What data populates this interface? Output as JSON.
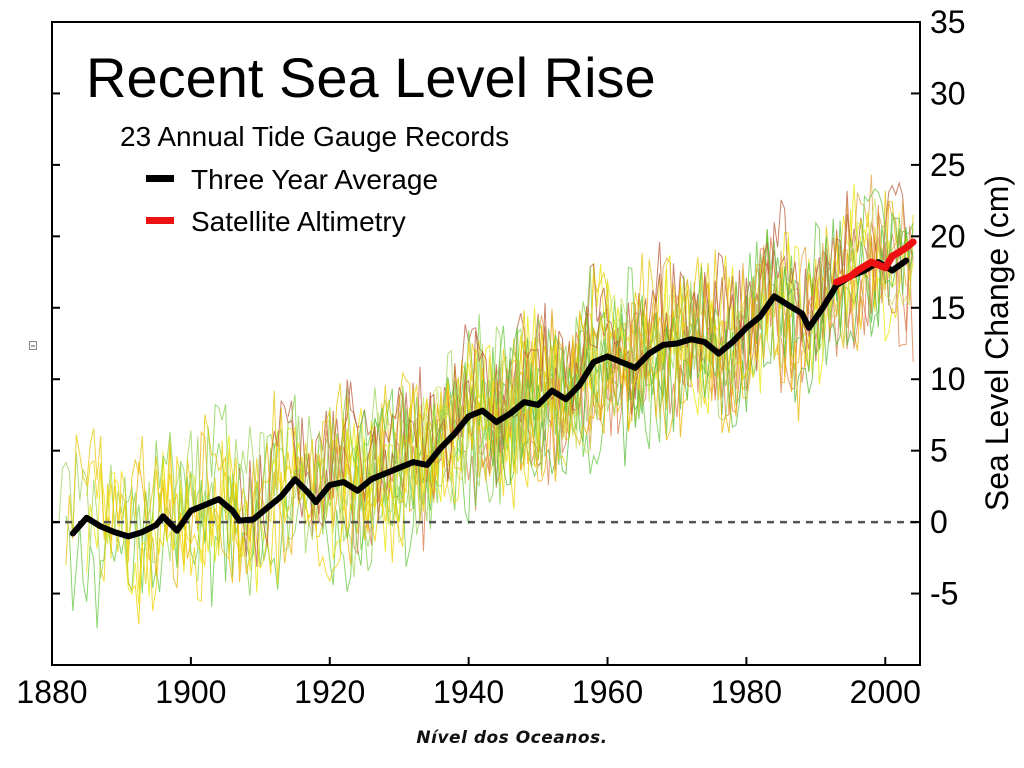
{
  "caption": "Nível dos Oceanos.",
  "chart_data": {
    "type": "line",
    "title": "Recent Sea Level Rise",
    "subtitle": "23 Annual Tide Gauge Records",
    "xlabel": "",
    "ylabel": "Sea Level Change (cm)",
    "xlim": [
      1880,
      2005
    ],
    "ylim": [
      -10,
      35
    ],
    "x_ticks": [
      1880,
      1900,
      1920,
      1940,
      1960,
      1980,
      2000
    ],
    "y_ticks": [
      -5,
      0,
      5,
      10,
      15,
      20,
      25,
      30,
      35
    ],
    "y_axis_side": "right",
    "grid": false,
    "legend_placement": "top-left",
    "zero_reference": {
      "y": 0,
      "style": "dashed",
      "color": "#555555"
    },
    "tide_gauge_colors": [
      "#e9e600",
      "#7fd048",
      "#e8c400",
      "#d97a4a",
      "#63c73e",
      "#c9e060",
      "#f0d000",
      "#b85a3a",
      "#55bb3a",
      "#ecb000",
      "#9bd35a",
      "#e2a040"
    ],
    "series": [
      {
        "name": "Three Year Average",
        "color": "#000000",
        "x": [
          1883,
          1885,
          1887,
          1889,
          1891,
          1893,
          1895,
          1896,
          1898,
          1900,
          1902,
          1904,
          1906,
          1907,
          1909,
          1911,
          1913,
          1915,
          1917,
          1918,
          1920,
          1922,
          1924,
          1926,
          1928,
          1930,
          1932,
          1934,
          1936,
          1938,
          1940,
          1942,
          1944,
          1946,
          1948,
          1950,
          1952,
          1954,
          1956,
          1958,
          1960,
          1962,
          1964,
          1966,
          1968,
          1970,
          1972,
          1974,
          1976,
          1978,
          1980,
          1982,
          1984,
          1986,
          1988,
          1989,
          1991,
          1993,
          1995,
          1997,
          1999,
          2001,
          2003
        ],
        "y": [
          -0.8,
          0.3,
          -0.3,
          -0.7,
          -1.0,
          -0.7,
          -0.2,
          0.4,
          -0.6,
          0.8,
          1.2,
          1.6,
          0.8,
          0.1,
          0.2,
          1.0,
          1.8,
          3.0,
          2.0,
          1.4,
          2.6,
          2.8,
          2.2,
          3.0,
          3.4,
          3.8,
          4.2,
          4.0,
          5.2,
          6.2,
          7.4,
          7.8,
          7.0,
          7.6,
          8.4,
          8.2,
          9.2,
          8.6,
          9.6,
          11.2,
          11.6,
          11.2,
          10.8,
          11.8,
          12.4,
          12.5,
          12.8,
          12.6,
          11.8,
          12.6,
          13.6,
          14.4,
          15.8,
          15.2,
          14.6,
          13.6,
          15.0,
          16.6,
          17.2,
          17.6,
          18.2,
          17.6,
          18.3
        ]
      },
      {
        "name": "Satellite Altimetry",
        "color": "#ee1111",
        "x": [
          1993,
          1994,
          1995,
          1996,
          1997,
          1998,
          1999,
          2000,
          2001,
          2002,
          2003,
          2004
        ],
        "y": [
          16.8,
          17.0,
          17.2,
          17.6,
          17.9,
          18.2,
          18.0,
          17.8,
          18.6,
          18.9,
          19.2,
          19.6
        ]
      }
    ]
  }
}
